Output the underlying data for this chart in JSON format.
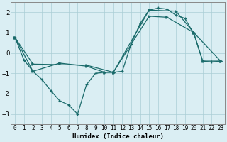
{
  "xlabel": "Humidex (Indice chaleur)",
  "bg_color": "#daeef3",
  "grid_color": "#aacdd5",
  "line_color": "#1a6b6b",
  "xlim": [
    -0.5,
    23.5
  ],
  "ylim": [
    -3.5,
    2.5
  ],
  "yticks": [
    -3,
    -2,
    -1,
    0,
    1,
    2
  ],
  "xticks": [
    0,
    1,
    2,
    3,
    4,
    5,
    6,
    7,
    8,
    9,
    10,
    11,
    12,
    13,
    14,
    15,
    16,
    17,
    18,
    19,
    20,
    21,
    22,
    23
  ],
  "line1_x": [
    0,
    1,
    2,
    3,
    4,
    5,
    6,
    7,
    8,
    9,
    10,
    11,
    12,
    13,
    14,
    15,
    16,
    17,
    18,
    19,
    20,
    21,
    22,
    23
  ],
  "line1_y": [
    0.75,
    -0.35,
    -0.9,
    -1.3,
    -1.85,
    -2.35,
    -2.55,
    -3.0,
    -1.55,
    -1.0,
    -0.95,
    -0.95,
    -0.9,
    0.45,
    1.45,
    2.1,
    2.2,
    2.15,
    1.85,
    1.7,
    0.95,
    -0.4,
    -0.45,
    -0.4
  ],
  "line2_x": [
    0,
    2,
    5,
    8,
    10,
    11,
    15,
    17,
    20,
    21,
    23
  ],
  "line2_y": [
    0.75,
    -0.9,
    -0.5,
    -0.65,
    -0.95,
    -0.95,
    1.8,
    1.75,
    1.0,
    -0.4,
    -0.4
  ],
  "line3_x": [
    0,
    2,
    8,
    11,
    15,
    18,
    20,
    23
  ],
  "line3_y": [
    0.75,
    -0.55,
    -0.6,
    -0.95,
    2.1,
    2.05,
    1.0,
    -0.4
  ]
}
